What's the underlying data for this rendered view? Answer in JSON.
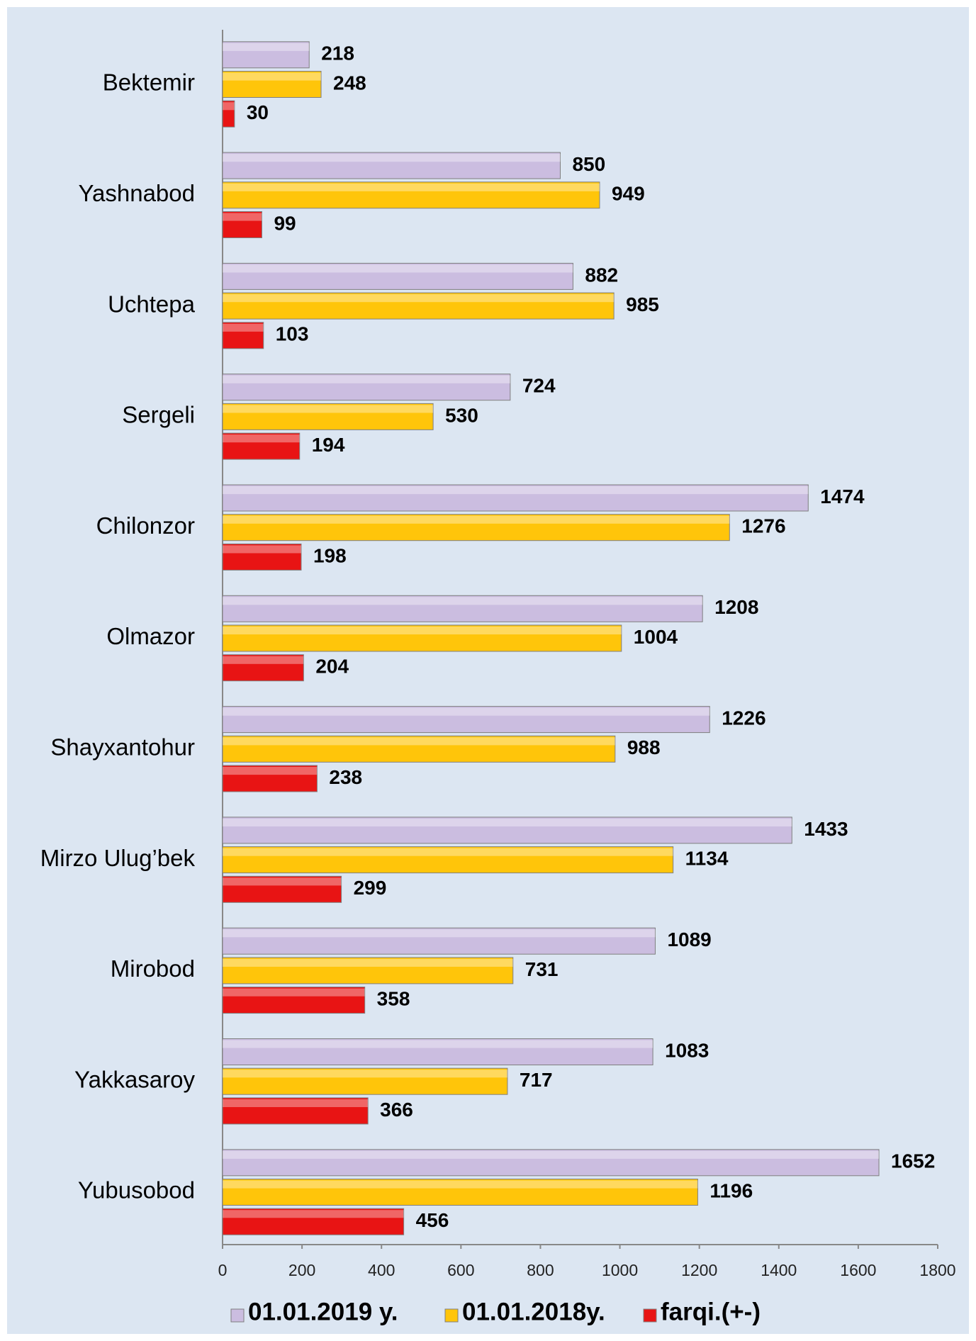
{
  "chart_data": {
    "type": "bar",
    "orientation": "horizontal",
    "categories": [
      "Bektemir",
      "Yashnabod",
      "Uchtepa",
      "Sergeli",
      "Chilonzor",
      "Olmazor",
      "Shayxantohur",
      "Mirzo Ulug’bek",
      "Mirobod",
      "Yakkasaroy",
      "Yubusobod"
    ],
    "series": [
      {
        "name": "01.01.2019 y.",
        "color": "#cbbde0",
        "values": [
          218,
          850,
          882,
          724,
          1474,
          1208,
          1226,
          1433,
          1089,
          1083,
          1652
        ]
      },
      {
        "name": "01.01.2018y.",
        "color": "#ffc50a",
        "values": [
          248,
          949,
          985,
          530,
          1276,
          1004,
          988,
          1134,
          731,
          717,
          1196
        ]
      },
      {
        "name": "farqi.(+-)",
        "color": "#e81414",
        "values": [
          30,
          99,
          103,
          194,
          198,
          204,
          238,
          299,
          358,
          366,
          456
        ]
      }
    ],
    "xlim": [
      0,
      1800
    ],
    "xticks": [
      0,
      200,
      400,
      600,
      800,
      1000,
      1200,
      1400,
      1600,
      1800
    ],
    "legend": "bottom"
  }
}
